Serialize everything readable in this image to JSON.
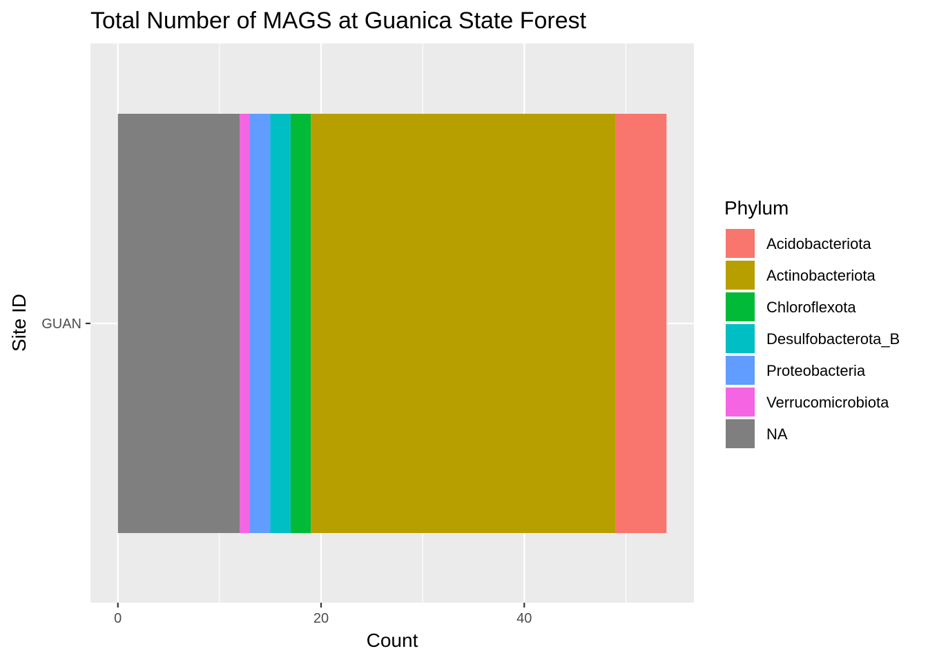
{
  "chart_data": {
    "type": "bar",
    "orientation": "horizontal",
    "stacked": true,
    "title": "Total Number of MAGS at Guanica State Forest",
    "xlabel": "Count",
    "ylabel": "Site ID",
    "categories": [
      "GUAN"
    ],
    "xlim": [
      -2.7,
      56.7
    ],
    "xticks": [
      0,
      20,
      40
    ],
    "grid": true,
    "legend_title": "Phylum",
    "legend_position": "right",
    "series": [
      {
        "name": "NA",
        "color": "#7f7f7f",
        "values": [
          12
        ]
      },
      {
        "name": "Verrucomicrobiota",
        "color": "#f564e3",
        "values": [
          1
        ]
      },
      {
        "name": "Proteobacteria",
        "color": "#619cff",
        "values": [
          2
        ]
      },
      {
        "name": "Desulfobacterota_B",
        "color": "#00bfc4",
        "values": [
          2
        ]
      },
      {
        "name": "Chloroflexota",
        "color": "#00ba38",
        "values": [
          2
        ]
      },
      {
        "name": "Actinobacteriota",
        "color": "#b79f00",
        "values": [
          30
        ]
      },
      {
        "name": "Acidobacteriota",
        "color": "#f8766d",
        "values": [
          5
        ]
      }
    ],
    "legend_order": [
      "Acidobacteriota",
      "Actinobacteriota",
      "Chloroflexota",
      "Desulfobacterota_B",
      "Proteobacteria",
      "Verrucomicrobiota",
      "NA"
    ]
  }
}
